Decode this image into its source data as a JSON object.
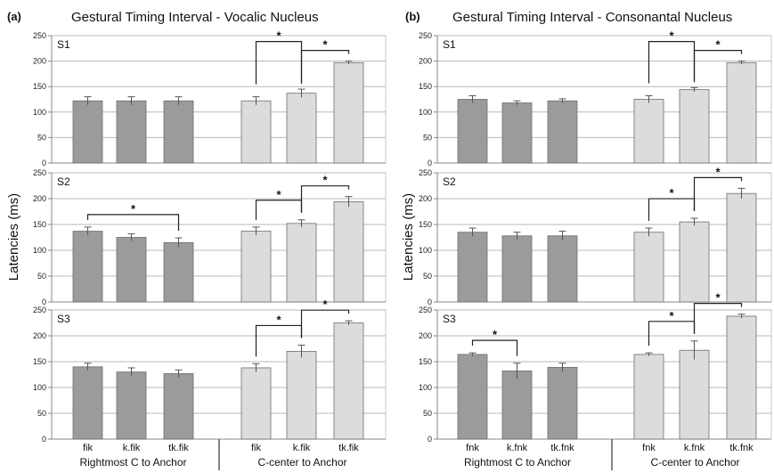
{
  "ylabel": "Latencies (ms)",
  "colors": {
    "dark": "#9b9b9b",
    "light": "#dcdcdc",
    "edge": "#6e6e6e"
  },
  "yticks": [
    "0",
    "50",
    "100",
    "150",
    "200",
    "250"
  ],
  "chart_data": [
    {
      "type": "bar",
      "panel": "(a)",
      "title": "Gestural Timing Interval - Vocalic Nucleus",
      "ylabel": "Latencies (ms)",
      "ylim": [
        0,
        250
      ],
      "categories": [
        "fik",
        "k.fik",
        "tk.fik",
        "fik",
        "k.fik",
        "tk.fik"
      ],
      "groups": [
        "Rightmost C to Anchor",
        "C-center to Anchor"
      ],
      "subplots": [
        {
          "label": "S1",
          "values": [
            122,
            122,
            122,
            122,
            137,
            197
          ],
          "errors": [
            8,
            8,
            8,
            8,
            8,
            3
          ],
          "sig": [
            {
              "a": 3,
              "b": 4,
              "c": 5
            },
            {
              "a": 4,
              "b": 5
            }
          ]
        },
        {
          "label": "S2",
          "values": [
            137,
            125,
            115,
            137,
            152,
            194
          ],
          "errors": [
            8,
            7,
            9,
            8,
            7,
            10
          ],
          "sig": [
            {
              "a": 0,
              "b": 2
            },
            {
              "a": 3,
              "b": 4
            },
            {
              "a": 4,
              "b": 5
            }
          ]
        },
        {
          "label": "S3",
          "values": [
            140,
            130,
            127,
            138,
            170,
            225
          ],
          "errors": [
            7,
            8,
            7,
            8,
            12,
            4
          ],
          "sig": [
            {
              "a": 3,
              "b": 4
            },
            {
              "a": 4,
              "b": 5
            }
          ]
        }
      ]
    },
    {
      "type": "bar",
      "panel": "(b)",
      "title": "Gestural Timing Interval - Consonantal Nucleus",
      "ylabel": "Latencies (ms)",
      "ylim": [
        0,
        250
      ],
      "categories": [
        "fnk",
        "k.fnk",
        "tk.fnk",
        "fnk",
        "k.fnk",
        "tk.fnk"
      ],
      "groups": [
        "Rightmost C to Anchor",
        "C-center to Anchor"
      ],
      "subplots": [
        {
          "label": "S1",
          "values": [
            125,
            118,
            122,
            125,
            144,
            197
          ],
          "errors": [
            7,
            4,
            4,
            7,
            4,
            3
          ],
          "sig": [
            {
              "a": 3,
              "b": 4,
              "c": 5
            },
            {
              "a": 4,
              "b": 5
            }
          ]
        },
        {
          "label": "S2",
          "values": [
            135,
            128,
            128,
            135,
            155,
            210
          ],
          "errors": [
            8,
            7,
            9,
            8,
            7,
            10
          ],
          "sig": [
            {
              "a": 3,
              "b": 4
            },
            {
              "a": 4,
              "b": 5
            }
          ]
        },
        {
          "label": "S3",
          "values": [
            164,
            132,
            139,
            164,
            172,
            238
          ],
          "errors": [
            3,
            15,
            8,
            3,
            18,
            4
          ],
          "sig": [
            {
              "a": 0,
              "b": 1
            },
            {
              "a": 3,
              "b": 4
            },
            {
              "a": 4,
              "b": 5
            }
          ]
        }
      ]
    }
  ]
}
